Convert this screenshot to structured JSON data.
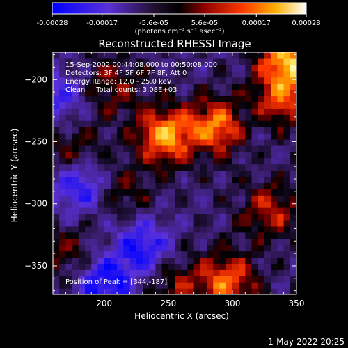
{
  "colorbar": {
    "tick_labels": [
      "-0.00028",
      "-0.00017",
      "-5.6e-05",
      "5.6e-05",
      "0.00017",
      "0.00028"
    ],
    "tick_values": [
      -0.00028,
      -0.00017,
      -5.6e-05,
      5.6e-05,
      0.00017,
      0.00028
    ],
    "range": [
      -0.00028,
      0.00028
    ],
    "unit_label": "(photons cm⁻² s⁻¹ asec⁻²)",
    "colors": [
      "#0000ff",
      "#6a3fd0",
      "#000000",
      "#8a0000",
      "#ff3000",
      "#ffa000",
      "#ffff80",
      "#ffffff"
    ]
  },
  "info": {
    "line1": "15-Sep-2002 00:44:08.000 to 00:50:08.000",
    "line2": "Detectors: 3F 4F 5F 6F 7F 8F, Att 0",
    "line3": "Energy Range: 12.0 - 25.0 keV",
    "line4": "Clean     Total counts: 3.08E+03",
    "peak": "Position of Peak = [344,-187]"
  },
  "footer": {
    "date": "1-May-2022 20:25"
  },
  "chart_data": {
    "type": "heatmap",
    "title": "Reconstructed RHESSI Image",
    "xlabel": "Heliocentric X (arcsec)",
    "ylabel": "Heliocentric Y (arcsec)",
    "xlim": [
      160,
      350
    ],
    "ylim": [
      -373,
      -178
    ],
    "x_ticks": [
      200,
      250,
      300,
      350
    ],
    "y_ticks": [
      -200,
      -250,
      -300,
      -350
    ],
    "peak_position": [
      344,
      -187
    ],
    "sources": [
      {
        "x": 248,
        "y": -245,
        "intensity": 0.00026
      },
      {
        "x": 290,
        "y": -237,
        "intensity": 0.00024
      },
      {
        "x": 333,
        "y": -222,
        "intensity": 0.00022
      },
      {
        "x": 344,
        "y": -187,
        "intensity": 0.00028
      },
      {
        "x": 296,
        "y": -362,
        "intensity": 0.00021
      },
      {
        "x": 330,
        "y": -305,
        "intensity": 0.00015
      },
      {
        "x": 205,
        "y": -205,
        "intensity": 0.00012
      },
      {
        "x": 175,
        "y": -255,
        "intensity": 0.00011
      },
      {
        "x": 255,
        "y": -365,
        "intensity": 0.00012
      },
      {
        "x": 215,
        "y": -290,
        "intensity": 9e-05
      },
      {
        "x": 170,
        "y": -340,
        "intensity": 0.0001
      }
    ],
    "negative_regions": [
      {
        "x": 180,
        "y": -285,
        "intensity": -0.00017
      },
      {
        "x": 230,
        "y": -335,
        "intensity": -0.00018
      },
      {
        "x": 200,
        "y": -365,
        "intensity": -0.0002
      },
      {
        "x": 320,
        "y": -230,
        "intensity": -0.00012
      },
      {
        "x": 165,
        "y": -215,
        "intensity": -0.00014
      }
    ]
  }
}
